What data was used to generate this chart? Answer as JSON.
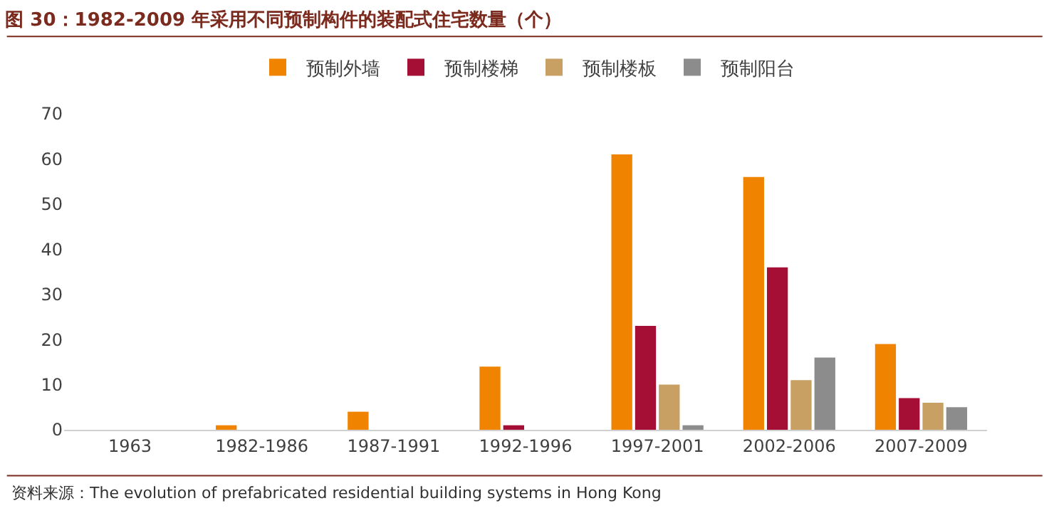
{
  "chart_data": {
    "type": "bar",
    "title": "图 30：1982-2009 年采用不同预制构件的装配式住宅数量（个）",
    "categories": [
      "1963",
      "1982-1986",
      "1987-1991",
      "1992-1996",
      "1997-2001",
      "2002-2006",
      "2007-2009"
    ],
    "series": [
      {
        "name": "预制外墙",
        "color": "#f08300",
        "values": [
          0,
          1,
          4,
          14,
          61,
          56,
          19
        ]
      },
      {
        "name": "预制楼梯",
        "color": "#a50f35",
        "values": [
          0,
          0,
          0,
          1,
          23,
          36,
          7
        ]
      },
      {
        "name": "预制楼板",
        "color": "#c9a063",
        "values": [
          0,
          0,
          0,
          0,
          10,
          11,
          6
        ]
      },
      {
        "name": "预制阳台",
        "color": "#8c8c8c",
        "values": [
          0,
          0,
          0,
          0,
          1,
          16,
          5
        ]
      }
    ],
    "ylim": [
      0,
      70
    ],
    "yticks": [
      0,
      10,
      20,
      30,
      40,
      50,
      60,
      70
    ],
    "grid": false,
    "legend": "top",
    "annotations": [
      "资料来源：The evolution of prefabricated residential building systems in Hong Kong"
    ]
  }
}
